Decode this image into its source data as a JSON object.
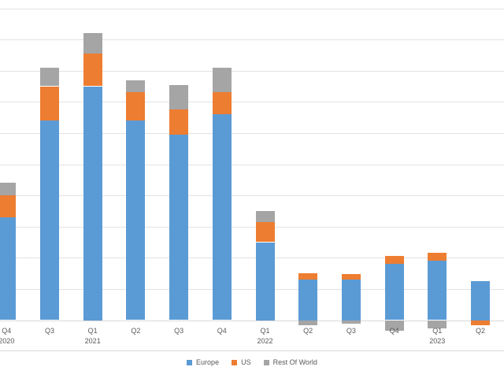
{
  "chart_data": {
    "type": "bar",
    "stacked": true,
    "title": "",
    "xlabel": "",
    "ylabel": "",
    "categories": [
      "Q4",
      "Q3",
      "Q1",
      "Q2",
      "Q3",
      "Q4",
      "Q1",
      "Q2",
      "Q3",
      "Q4",
      "Q1",
      "Q2"
    ],
    "year_labels": [
      {
        "index": 0,
        "label": "2020"
      },
      {
        "index": 2,
        "label": "2021"
      },
      {
        "index": 6,
        "label": "2022"
      },
      {
        "index": 10,
        "label": "2023"
      }
    ],
    "series": [
      {
        "name": "Europe",
        "color": "#5B9BD5",
        "values": [
          3.3,
          6.4,
          7.5,
          6.4,
          5.95,
          6.6,
          2.5,
          1.3,
          1.3,
          1.8,
          1.9,
          1.25
        ]
      },
      {
        "name": "US",
        "color": "#ED7D31",
        "values": [
          0.7,
          1.1,
          1.05,
          0.9,
          0.8,
          0.7,
          0.65,
          0.2,
          0.18,
          0.25,
          0.25,
          -0.17
        ]
      },
      {
        "name": "Rest Of World",
        "color": "#A5A5A5",
        "values": [
          0.4,
          0.6,
          0.65,
          0.4,
          0.8,
          0.8,
          0.35,
          -0.17,
          -0.11,
          -0.35,
          -0.27,
          0
        ]
      }
    ],
    "ylim": [
      -1,
      10
    ],
    "gridline_step": 1,
    "grid": true,
    "legend_position": "bottom",
    "value_axis_labels_visible": false
  },
  "legend": {
    "items": [
      {
        "label": "Europe",
        "color": "#5B9BD5"
      },
      {
        "label": "US",
        "color": "#ED7D31"
      },
      {
        "label": "Rest Of World",
        "color": "#A5A5A5"
      }
    ]
  },
  "colors": {
    "gridline": "#e2e2e2",
    "axis_line": "#d9d9d9",
    "label_text": "#595959",
    "background": "#ffffff"
  }
}
